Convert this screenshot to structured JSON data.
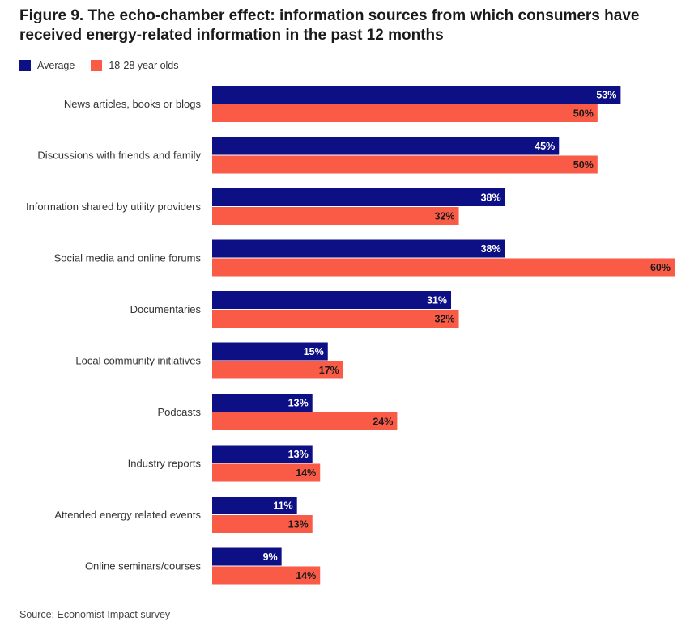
{
  "title": "Figure 9. The echo-chamber effect: information sources from which consumers have received energy-related information in the past 12 months",
  "source": "Source: Economist Impact survey",
  "colors": {
    "average": "#0d0f84",
    "young": "#f95b47",
    "average_label_text": "#ffffff",
    "young_label_text": "#1a1a1a"
  },
  "chart_data": {
    "type": "bar",
    "orientation": "horizontal",
    "title": "Figure 9. The echo-chamber effect: information sources from which consumers have received energy-related information in the past 12 months",
    "legend_position": "top-left",
    "grid": false,
    "categories": [
      "News articles, books or blogs",
      "Discussions with friends and family",
      "Information shared by utility providers",
      "Social media and online forums",
      "Documentaries",
      "Local community initiatives",
      "Podcasts",
      "Industry reports",
      "Attended energy related events",
      "Online seminars/courses"
    ],
    "series": [
      {
        "name": "Average",
        "values": [
          53,
          45,
          38,
          38,
          31,
          15,
          13,
          13,
          11,
          9
        ]
      },
      {
        "name": "18-28 year olds",
        "values": [
          50,
          50,
          32,
          60,
          32,
          17,
          24,
          14,
          13,
          14
        ]
      }
    ],
    "value_labels": [
      [
        "53%",
        "45%",
        "38%",
        "38%",
        "31%",
        "15%",
        "13%",
        "13%",
        "11%",
        "9%"
      ],
      [
        "50%",
        "50%",
        "32%",
        "60%",
        "32%",
        "17%",
        "24%",
        "14%",
        "13%",
        "14%"
      ]
    ],
    "xlim": [
      0,
      60
    ]
  }
}
